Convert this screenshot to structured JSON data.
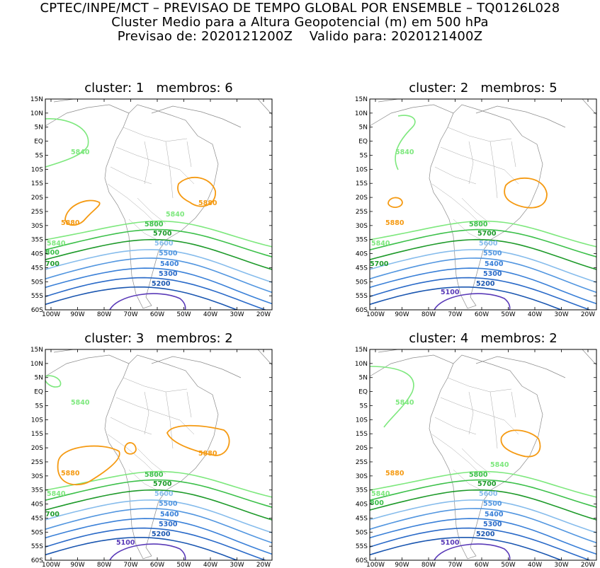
{
  "header": {
    "line1": "CPTEC/INPE/MCT – PREVISAO DE TEMPO GLOBAL POR ENSEMBLE – TQ0126L028",
    "line2": "Cluster Medio para a Altura Geopotencial (m) em 500 hPa",
    "line3": "Previsao de: 2020121200Z    Valido para: 2020121400Z"
  },
  "axes": {
    "lat_labels": [
      "15N",
      "10N",
      "5N",
      "EQ",
      "5S",
      "10S",
      "15S",
      "20S",
      "25S",
      "30S",
      "35S",
      "40S",
      "45S",
      "50S",
      "55S",
      "60S"
    ],
    "lon_labels": [
      "100W",
      "90W",
      "80W",
      "70W",
      "60W",
      "50W",
      "40W",
      "30W",
      "20W"
    ]
  },
  "colors": {
    "c5100": "#5a3ab8",
    "c5200": "#1a56b0",
    "c5300": "#2a6ac8",
    "c5400": "#3a80d8",
    "c5500": "#5296e0",
    "c5600": "#86bcec",
    "c5700": "#1e9a2a",
    "c5800": "#3cc04a",
    "c5840": "#7ee87e",
    "c5880": "#f59a12"
  },
  "panels": [
    {
      "title": "cluster: 1   membros: 6",
      "labels": {
        "l5840a": "5840",
        "l5880a": "5880",
        "l5880b": "5880",
        "l5840b": "5840",
        "l5800": "5800",
        "l5840c": "5840",
        "l5800b": "800",
        "l5700": "5700",
        "l5700b": "700",
        "l5600": "5600",
        "l5500": "5500",
        "l5400": "5400",
        "l5300": "5300",
        "l5200": "5200"
      }
    },
    {
      "title": "cluster: 2   membros: 5",
      "labels": {
        "l5880a": "5880",
        "l5840a": "5840",
        "l5800": "5800",
        "l5840c": "5840",
        "l5700": "5700",
        "l5700b": "5700",
        "l5600": "5600",
        "l5500": "5500",
        "l5400": "5400",
        "l5300": "5300",
        "l5200": "5200",
        "l5100": "5100"
      }
    },
    {
      "title": "cluster: 3   membros: 2",
      "labels": {
        "l5880a": "5880",
        "l5880b": "5880",
        "l5840a": "5840",
        "l5800": "5800",
        "l5700": "5700",
        "l5600": "5600",
        "l5500": "5500",
        "l5400": "5400",
        "l5300": "5300",
        "l5200": "5200",
        "l5100": "5100",
        "l5840c": "5840",
        "l5700b": "700"
      }
    },
    {
      "title": "cluster: 4   membros: 2",
      "labels": {
        "l5840a": "5840",
        "l5880a": "5880",
        "l5840b": "5840",
        "l5800": "5800",
        "l5840c": "5840",
        "l5700": "5700",
        "l5800b": "800",
        "l5600": "5600",
        "l5500": "5500",
        "l5400": "5400",
        "l5300": "5300",
        "l5200": "5200",
        "l5100": "5100"
      }
    }
  ]
}
